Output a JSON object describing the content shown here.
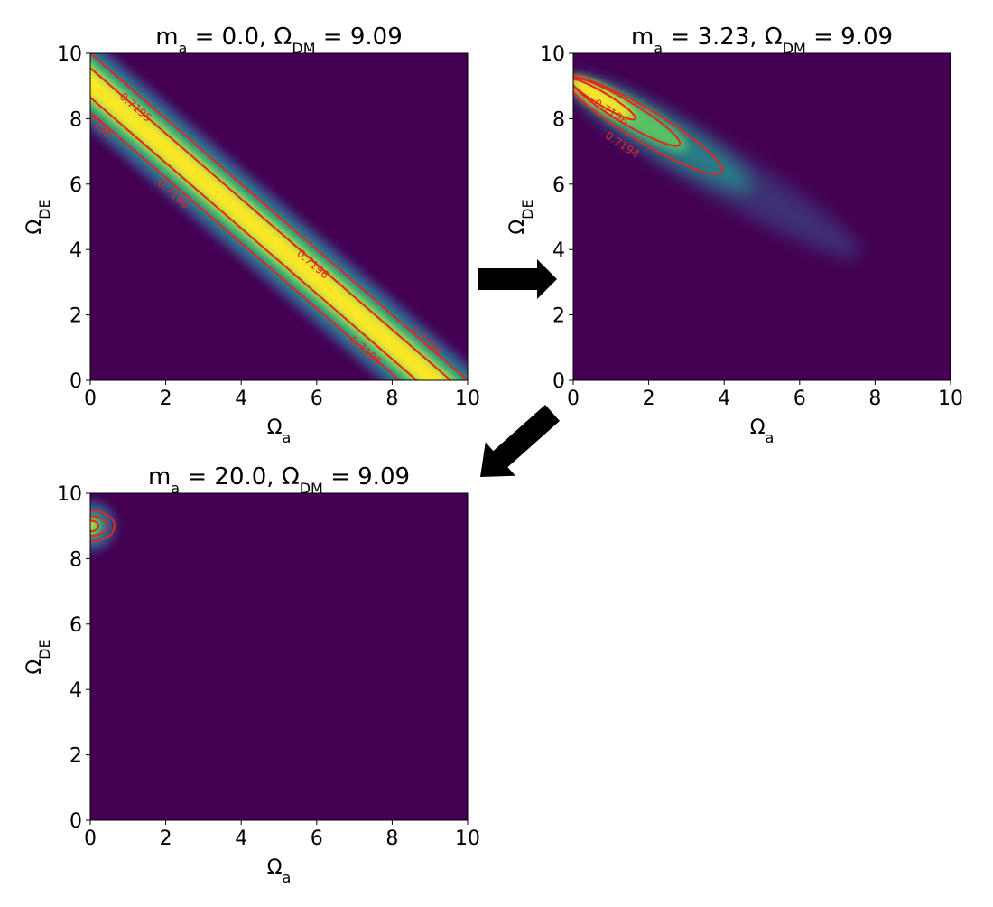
{
  "chart_data": [
    {
      "type": "heatmap",
      "title": "m_a = 0.0, Ω_DM = 9.09",
      "xlabel": "Ω_a",
      "ylabel": "Ω_DE",
      "xlim": [
        0,
        10
      ],
      "ylim": [
        0,
        10
      ],
      "xticks": [
        0,
        2,
        4,
        6,
        8,
        10
      ],
      "yticks": [
        0,
        2,
        4,
        6,
        8,
        10
      ],
      "contour_color": "#e3261e",
      "contour_labels": [
        0.7196,
        0.7195,
        0.7196,
        0.7196,
        0.7195,
        0.7196
      ]
    },
    {
      "type": "heatmap",
      "title": "m_a = 3.23, Ω_DM = 9.09",
      "xlabel": "Ω_a",
      "ylabel": "Ω_DE",
      "xlim": [
        0,
        10
      ],
      "ylim": [
        0,
        10
      ],
      "xticks": [
        0,
        2,
        4,
        6,
        8,
        10
      ],
      "yticks": [
        0,
        2,
        4,
        6,
        8,
        10
      ],
      "contour_color": "#e3261e",
      "contour_labels": [
        0.7196,
        0.7194
      ]
    },
    {
      "type": "heatmap",
      "title": "m_a = 20.0, Ω_DM = 9.09",
      "xlabel": "Ω_a",
      "ylabel": "Ω_DE",
      "xlim": [
        0,
        10
      ],
      "ylim": [
        0,
        10
      ],
      "xticks": [
        0,
        2,
        4,
        6,
        8,
        10
      ],
      "yticks": [
        0,
        2,
        4,
        6,
        8,
        10
      ],
      "contour_color": "#e3261e"
    }
  ]
}
